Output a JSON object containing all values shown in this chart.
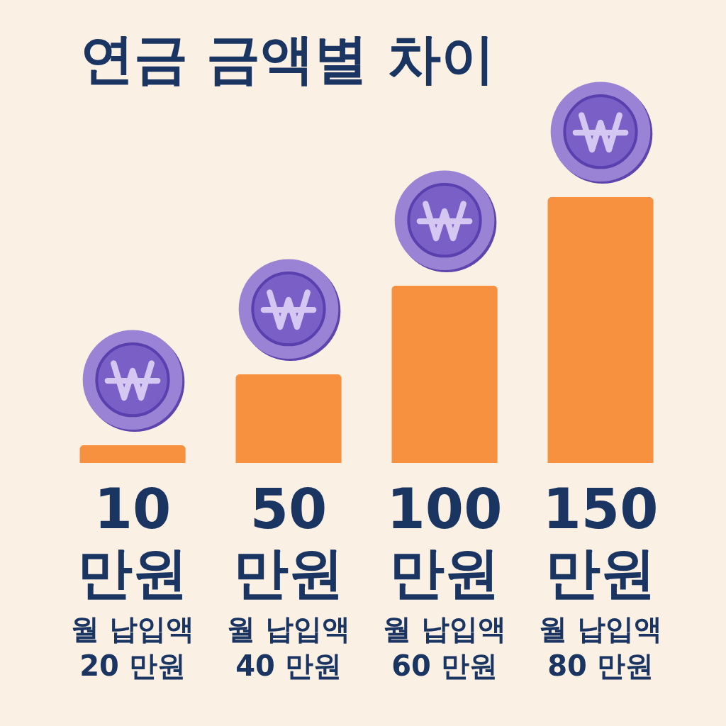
{
  "chart_data": {
    "type": "bar",
    "title": "연금 금액별 차이",
    "categories": [
      "월 납입액 20 만원",
      "월 납입액 40 만원",
      "월 납입액 60 만원",
      "월 납입액 80 만원"
    ],
    "values": [
      10,
      50,
      100,
      150
    ],
    "value_labels": [
      "10 만원",
      "50 만원",
      "100 만원",
      "150 만원"
    ],
    "tick_labels": "x",
    "color": "#f7913f"
  }
}
